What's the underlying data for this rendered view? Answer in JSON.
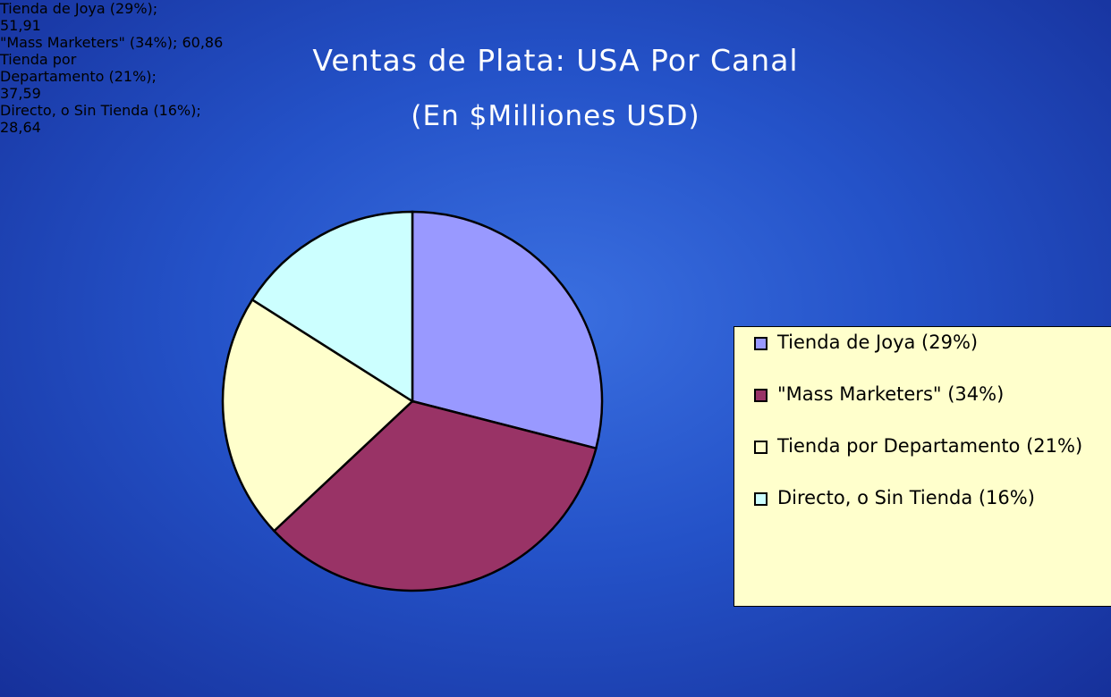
{
  "chart_data": {
    "type": "pie",
    "title": "Ventas de Plata: USA Por Canal",
    "subtitle": "(En $Milliones USD)",
    "categories": [
      "Tienda de Joya (29%)",
      "\"Mass Marketers\" (34%)",
      "Tienda por Departamento (21%)",
      "Directo, o Sin Tienda (16%)"
    ],
    "values": [
      51.91,
      60.86,
      37.59,
      28.64
    ],
    "value_labels": [
      "Tienda de Joya (29%); 51,91",
      "\"Mass Marketers\" (34%); 60,86",
      "Tienda por Departamento (21%); 37,59",
      "Directo, o Sin Tienda (16%); 28,64"
    ],
    "colors": [
      "#9999ff",
      "#993366",
      "#ffffcc",
      "#ccffff"
    ],
    "legend": "right"
  }
}
